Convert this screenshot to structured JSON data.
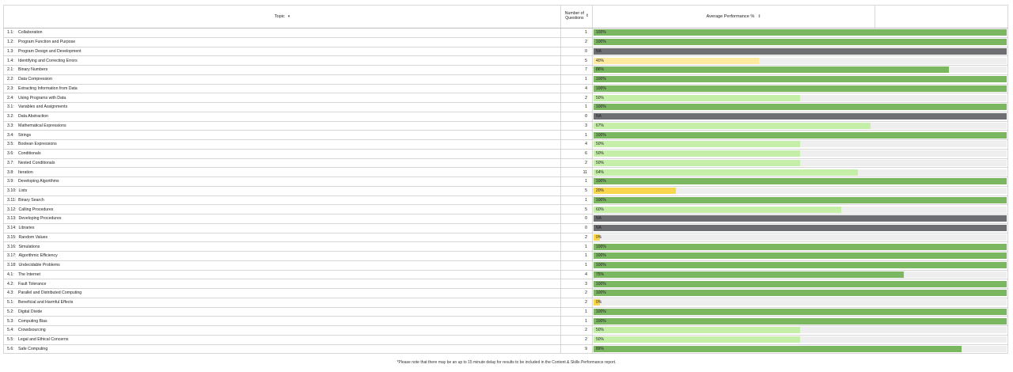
{
  "header": {
    "topic_label": "Topic",
    "topic_sort_icon": "caret-down-icon",
    "questions_label": "Number of Questions",
    "questions_sort_icon": "sort-updown-icon",
    "performance_label": "Average Performance %",
    "performance_sort_icon": "sort-updown-icon"
  },
  "colors": {
    "full": "#7bb661",
    "high": "#c5efa8",
    "low": "#fdeaa0",
    "very_low": "#f8d64e",
    "na": "#6e6f72",
    "track": "#eeeeee"
  },
  "rows": [
    {
      "code": "1.1:",
      "name": "Collaboration",
      "count": "1",
      "label": "100%",
      "value": 100,
      "band": "full"
    },
    {
      "code": "1.2:",
      "name": "Program Function and Purpose",
      "count": "2",
      "label": "100%",
      "value": 100,
      "band": "full"
    },
    {
      "code": "1.3:",
      "name": "Program Design and Development",
      "count": "0",
      "label": "NA",
      "value": 100,
      "band": "na"
    },
    {
      "code": "1.4:",
      "name": "Identifying and Correcting Errors",
      "count": "5",
      "label": "40%",
      "value": 40,
      "band": "low"
    },
    {
      "code": "2.1:",
      "name": "Binary Numbers",
      "count": "7",
      "label": "86%",
      "value": 86,
      "band": "full"
    },
    {
      "code": "2.2:",
      "name": "Data Compression",
      "count": "1",
      "label": "100%",
      "value": 100,
      "band": "full"
    },
    {
      "code": "2.3:",
      "name": "Extracting Information from Data",
      "count": "4",
      "label": "100%",
      "value": 100,
      "band": "full"
    },
    {
      "code": "2.4:",
      "name": "Using Programs with Data",
      "count": "2",
      "label": "50%",
      "value": 50,
      "band": "high"
    },
    {
      "code": "3.1:",
      "name": "Variables and Assignments",
      "count": "1",
      "label": "100%",
      "value": 100,
      "band": "full"
    },
    {
      "code": "3.2:",
      "name": "Data Abstraction",
      "count": "0",
      "label": "NA",
      "value": 100,
      "band": "na"
    },
    {
      "code": "3.3:",
      "name": "Mathematical Expressions",
      "count": "3",
      "label": "67%",
      "value": 67,
      "band": "high"
    },
    {
      "code": "3.4:",
      "name": "Strings",
      "count": "1",
      "label": "100%",
      "value": 100,
      "band": "full"
    },
    {
      "code": "3.5:",
      "name": "Boolean Expressions",
      "count": "4",
      "label": "50%",
      "value": 50,
      "band": "high"
    },
    {
      "code": "3.6:",
      "name": "Conditionals",
      "count": "6",
      "label": "50%",
      "value": 50,
      "band": "high"
    },
    {
      "code": "3.7:",
      "name": "Nested Conditionals",
      "count": "2",
      "label": "50%",
      "value": 50,
      "band": "high"
    },
    {
      "code": "3.8:",
      "name": "Iteration",
      "count": "11",
      "label": "64%",
      "value": 64,
      "band": "high"
    },
    {
      "code": "3.9:",
      "name": "Developing Algorithms",
      "count": "1",
      "label": "100%",
      "value": 100,
      "band": "full"
    },
    {
      "code": "3.10:",
      "name": "Lists",
      "count": "5",
      "label": "20%",
      "value": 20,
      "band": "very_low"
    },
    {
      "code": "3.11:",
      "name": "Binary Search",
      "count": "1",
      "label": "100%",
      "value": 100,
      "band": "full"
    },
    {
      "code": "3.12:",
      "name": "Calling Procedures",
      "count": "5",
      "label": "60%",
      "value": 60,
      "band": "high"
    },
    {
      "code": "3.13:",
      "name": "Developing Procedures",
      "count": "0",
      "label": "NA",
      "value": 100,
      "band": "na"
    },
    {
      "code": "3.14:",
      "name": "Libraries",
      "count": "0",
      "label": "NA",
      "value": 100,
      "band": "na"
    },
    {
      "code": "3.15:",
      "name": "Random Values",
      "count": "2",
      "label": "0%",
      "value": 1.5,
      "band": "very_low"
    },
    {
      "code": "3.16:",
      "name": "Simulations",
      "count": "1",
      "label": "100%",
      "value": 100,
      "band": "full"
    },
    {
      "code": "3.17:",
      "name": "Algorithmic Efficiency",
      "count": "1",
      "label": "100%",
      "value": 100,
      "band": "full"
    },
    {
      "code": "3.18:",
      "name": "Undecidable Problems",
      "count": "1",
      "label": "100%",
      "value": 100,
      "band": "full"
    },
    {
      "code": "4.1:",
      "name": "The Internet",
      "count": "4",
      "label": "75%",
      "value": 75,
      "band": "full"
    },
    {
      "code": "4.2:",
      "name": "Fault Tolerance",
      "count": "3",
      "label": "100%",
      "value": 100,
      "band": "full"
    },
    {
      "code": "4.3:",
      "name": "Parallel and Distributed Computing",
      "count": "2",
      "label": "100%",
      "value": 100,
      "band": "full"
    },
    {
      "code": "5.1:",
      "name": "Beneficial and Harmful Effects",
      "count": "2",
      "label": "0%",
      "value": 1.5,
      "band": "very_low"
    },
    {
      "code": "5.2:",
      "name": "Digital Divide",
      "count": "1",
      "label": "100%",
      "value": 100,
      "band": "full"
    },
    {
      "code": "5.3:",
      "name": "Computing Bias",
      "count": "1",
      "label": "100%",
      "value": 100,
      "band": "full"
    },
    {
      "code": "5.4:",
      "name": "Crowdsourcing",
      "count": "2",
      "label": "50%",
      "value": 50,
      "band": "high"
    },
    {
      "code": "5.5:",
      "name": "Legal and Ethical Concerns",
      "count": "2",
      "label": "50%",
      "value": 50,
      "band": "high"
    },
    {
      "code": "5.6:",
      "name": "Safe Computing",
      "count": "9",
      "label": "89%",
      "value": 89,
      "band": "full"
    }
  ],
  "footnote": "*Please note that there may be an up to 15 minute delay for results to be included in the Content & Skills Performance report."
}
